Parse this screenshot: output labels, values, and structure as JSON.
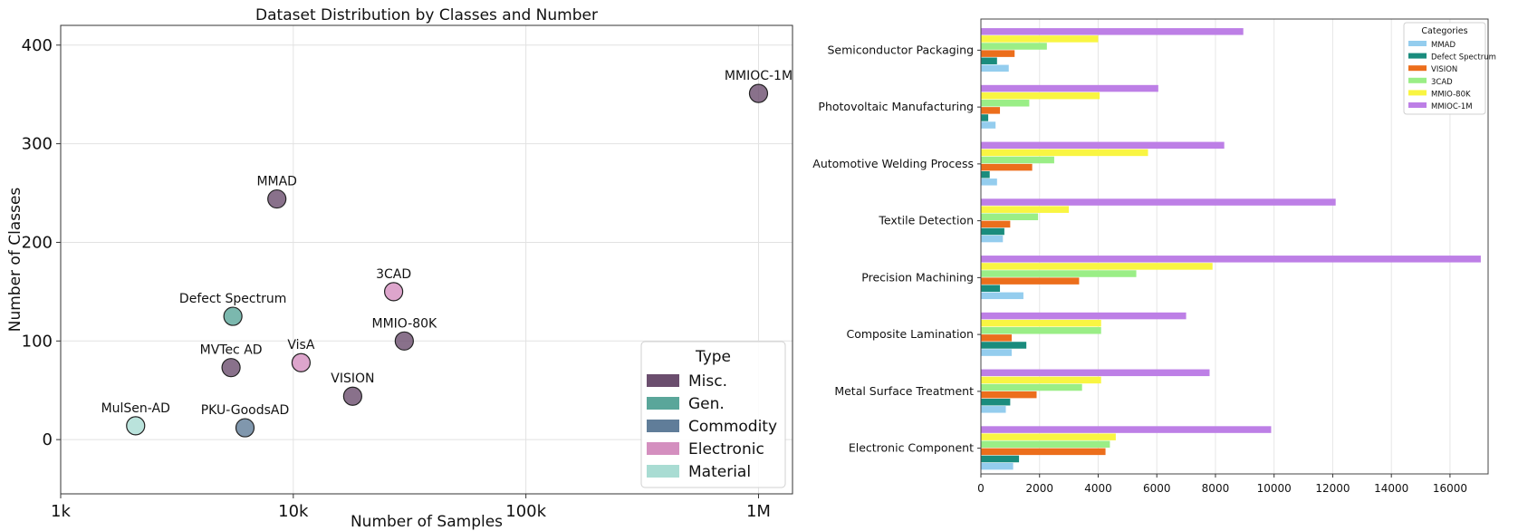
{
  "chart_data": [
    {
      "type": "scatter",
      "title": "Dataset Distribution by Classes and Number",
      "xlabel": "Number of Samples",
      "ylabel": "Number of Classes",
      "x_scale": "log",
      "xlim": [
        1000,
        1400000
      ],
      "ylim": [
        -55,
        420
      ],
      "x_ticks": [
        {
          "value": 1000,
          "label": "1k"
        },
        {
          "value": 10000,
          "label": "10k"
        },
        {
          "value": 100000,
          "label": "100k"
        },
        {
          "value": 1000000,
          "label": "1M"
        }
      ],
      "y_ticks": [
        0,
        100,
        200,
        300,
        400
      ],
      "grid": true,
      "legend": {
        "title": "Type",
        "placement": "bottom-right"
      },
      "types": [
        {
          "name": "Misc.",
          "color": "#6b4e6e"
        },
        {
          "name": "Gen.",
          "color": "#5aa69a"
        },
        {
          "name": "Commodity",
          "color": "#607d99"
        },
        {
          "name": "Electronic",
          "color": "#d48fbf"
        },
        {
          "name": "Material",
          "color": "#a9dcd3"
        }
      ],
      "points": [
        {
          "label": "MMIOC-1M",
          "x": 1000000,
          "y": 351,
          "type": "Misc."
        },
        {
          "label": "MMAD",
          "x": 8500,
          "y": 244,
          "type": "Misc."
        },
        {
          "label": "3CAD",
          "x": 27000,
          "y": 150,
          "type": "Electronic"
        },
        {
          "label": "Defect Spectrum",
          "x": 5500,
          "y": 125,
          "type": "Gen."
        },
        {
          "label": "MMIO-80K",
          "x": 30000,
          "y": 100,
          "type": "Misc."
        },
        {
          "label": "MVTec AD",
          "x": 5400,
          "y": 73,
          "type": "Misc."
        },
        {
          "label": "VisA",
          "x": 10800,
          "y": 78,
          "type": "Electronic"
        },
        {
          "label": "VISION",
          "x": 18000,
          "y": 44,
          "type": "Misc."
        },
        {
          "label": "MulSen-AD",
          "x": 2100,
          "y": 14,
          "type": "Material"
        },
        {
          "label": "PKU-GoodsAD",
          "x": 6200,
          "y": 12,
          "type": "Commodity"
        }
      ]
    },
    {
      "type": "bar",
      "orientation": "horizontal",
      "categories": [
        "Semiconductor Packaging",
        "Photovoltaic Manufacturing",
        "Automotive Welding Process",
        "Textile Detection",
        "Precision Machining",
        "Composite Lamination",
        "Metal Surface Treatment",
        "Electronic Component"
      ],
      "xlim": [
        0,
        17300
      ],
      "x_ticks": [
        0,
        2000,
        4000,
        6000,
        8000,
        10000,
        12000,
        14000,
        16000
      ],
      "grid": true,
      "legend": {
        "title": "Categories",
        "placement": "top-right"
      },
      "series": [
        {
          "name": "MMAD",
          "color": "#94cdee",
          "values": [
            950,
            500,
            550,
            750,
            1450,
            1050,
            850,
            1100
          ]
        },
        {
          "name": "Defect Spectrum",
          "color": "#1a8c7d",
          "values": [
            550,
            250,
            300,
            800,
            650,
            1550,
            1000,
            1300
          ]
        },
        {
          "name": "VISION",
          "color": "#ec6e1c",
          "values": [
            1150,
            650,
            1750,
            1000,
            3350,
            1050,
            1900,
            4250
          ]
        },
        {
          "name": "3CAD",
          "color": "#9aee86",
          "values": [
            2250,
            1650,
            2500,
            1950,
            5300,
            4100,
            3450,
            4400
          ]
        },
        {
          "name": "MMIO-80K",
          "color": "#f9f542",
          "values": [
            4000,
            4050,
            5700,
            3000,
            7900,
            4100,
            4100,
            4600
          ]
        },
        {
          "name": "MMIOC-1M",
          "color": "#bd7fe6",
          "values": [
            8950,
            6050,
            8300,
            12100,
            17050,
            7000,
            7800,
            9900
          ]
        }
      ]
    }
  ]
}
